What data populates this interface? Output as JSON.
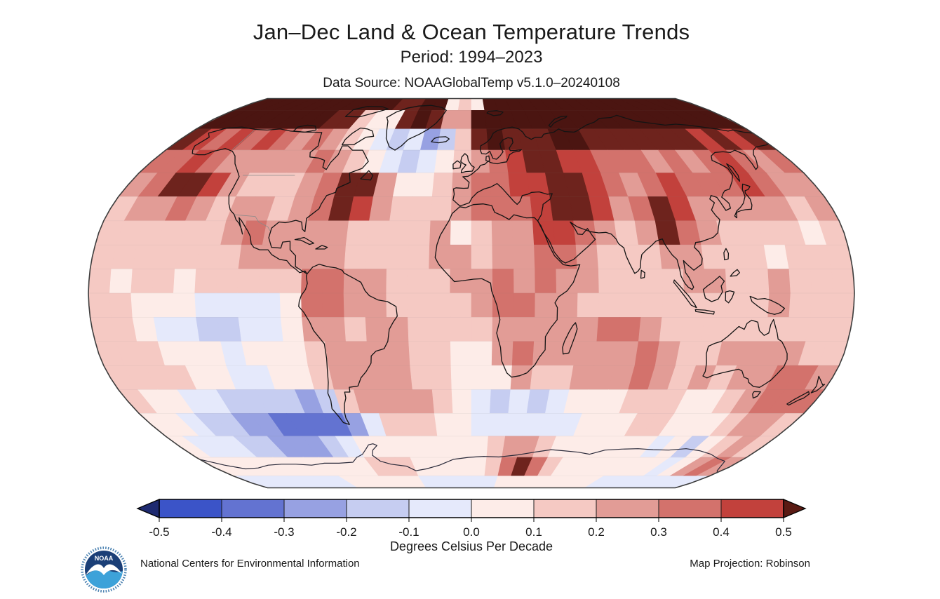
{
  "header": {
    "title": "Jan–Dec Land & Ocean Temperature Trends",
    "subtitle": "Period: 1994–2023",
    "data_source": "Data Source: NOAAGlobalTemp v5.1.0–20240108"
  },
  "footer": {
    "left": "National Centers for Environmental Information",
    "right": "Map Projection: Robinson",
    "logo_text": "NOAA"
  },
  "colorbar": {
    "label": "Degrees Celsius Per Decade",
    "ticks": [
      "-0.5",
      "-0.4",
      "-0.3",
      "-0.2",
      "-0.1",
      "0.0",
      "0.1",
      "0.2",
      "0.3",
      "0.4",
      "0.5"
    ],
    "segment_colors": [
      "#3b54c8",
      "#6373d1",
      "#97a1e2",
      "#c6cdf1",
      "#e5e9fb",
      "#fdece8",
      "#f5c9c3",
      "#e29c96",
      "#d3726c",
      "#c2413c"
    ],
    "left_cap_color": "#1e2a70",
    "right_cap_color": "#5a1a13"
  },
  "chart_data": {
    "type": "heatmap",
    "title": "Jan–Dec Land & Ocean Temperature Trends",
    "subtitle": "Period: 1994–2023",
    "units": "Degrees Celsius Per Decade",
    "projection": "Robinson",
    "colorbar_range": [
      -0.5,
      0.5
    ],
    "colorbar_step": 0.1,
    "lon_start": -180,
    "lon_step": 10,
    "lat_start": 90,
    "lat_step": -10,
    "palette": {
      "0": "#1e2a70",
      "1": "#3b54c8",
      "2": "#6373d1",
      "3": "#97a1e2",
      "4": "#c6cdf1",
      "5": "#e5e9fb",
      "6": "#fdece8",
      "7": "#f5c9c3",
      "8": "#e29c96",
      "9": "#d3726c",
      "A": "#c2413c",
      "B": "#6e231d",
      "C": "#4b1511"
    },
    "bin_meaning": {
      "0": "< -0.5",
      "1": "-0.5 to -0.4",
      "2": "-0.4 to -0.3",
      "3": "-0.3 to -0.2",
      "4": "-0.2 to -0.1",
      "5": "-0.1 to 0.0",
      "6": "0.0 to 0.1",
      "7": "0.1 to 0.2",
      "8": "0.2 to 0.3",
      "9": "0.3 to 0.4",
      "A": "0.4 to 0.5",
      "B": "0.5 to 0.6",
      "C": "> 0.6"
    },
    "grid": [
      "CCCCCCCCCCCCBBCC676CCCCCCCCCCCCCCCCC",
      "CCCCCCCCBB766BCB88CCCCCCCCCCCCCCCCCC",
      "BA9A9A989876545347BCBBBCCBBBBBBBABAB",
      "99A98888898765456789ABBAA9998989A989",
      "89BBA877789BB8667899AABBA989A999A988",
      "78898788789BA87778999ABBA89BA8888878",
      "777777898888777786788AA9878B98777767",
      "777777788888777788788998777887776777",
      "767767777799887778898988777788778777",
      "776665555699887777899887777777778777",
      "776554455688788777788888998777777777",
      "777666566678888776689888889877888877",
      "777766556678888776668778889878788998",
      "766554444347888876545456667776678999",
      "665443322223577766555555666776667887",
      "655544333456666666678876666665646787",
      "666666666667776666679B97666666656898",
      "555555556666665555556666666655555555"
    ]
  }
}
